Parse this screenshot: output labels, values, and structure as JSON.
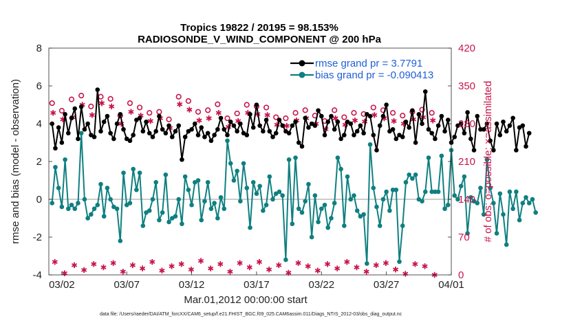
{
  "chart_data": {
    "type": "line",
    "title": "Tropics 19822 / 20195 = 98.153%",
    "subtitle": "RADIOSONDE_V_WIND_COMPONENT @ 200 hPa",
    "xlabel": "Mar.01,2012 00:00:00 start",
    "ylabel": "rmse and bias (model - observation)",
    "y2label": "# of obs: o=possible; ×=assimilated",
    "footer": "data file: /Users/raeder/DAI/ATM_forcXX/CAM6_setup/f.e21.FHIST_BGC.f09_025.CAM6assim.011/Diags_NTrS_2012-03/obs_diag_output.nc",
    "x_range": [
      0.5,
      31.5
    ],
    "ylim": [
      -4,
      8
    ],
    "y2lim": [
      0,
      420
    ],
    "yticks": [
      "-4",
      "-2",
      "0",
      "2",
      "4",
      "6",
      "8"
    ],
    "y2ticks": [
      "0",
      "70",
      "140",
      "210",
      "280",
      "350",
      "420"
    ],
    "xtick_labels": [
      "03/02",
      "03/07",
      "03/12",
      "03/17",
      "03/22",
      "03/27",
      "04/01"
    ],
    "xtick_pos": [
      1.5,
      6.5,
      11.5,
      16.5,
      21.5,
      26.5,
      31.5
    ],
    "legend": [
      "rmse grand pr = 3.7791",
      "bias grand pr = -0.090413"
    ],
    "legend_position": "top-right",
    "colors": {
      "rmse": "#000000",
      "bias": "#0f7f80",
      "obs": "#c8144b",
      "zero": "#bbbbbb"
    },
    "x_start": 0.75,
    "x_step": 0.25,
    "rmse": [
      4.0,
      2.7,
      3.8,
      3.0,
      4.5,
      3.5,
      4.3,
      4.8,
      3.2,
      4.9,
      3.7,
      4.0,
      3.4,
      3.3,
      5.8,
      3.6,
      4.1,
      4.4,
      3.5,
      3.2,
      4.0,
      4.5,
      3.7,
      3.2,
      3.1,
      3.4,
      4.2,
      4.3,
      3.6,
      4.1,
      3.5,
      3.3,
      3.6,
      4.4,
      3.7,
      3.5,
      3.9,
      3.3,
      3.6,
      3.9,
      2.1,
      3.3,
      3.6,
      3.7,
      4.0,
      3.4,
      3.8,
      3.3,
      3.5,
      3.1,
      3.4,
      3.7,
      4.3,
      3.7,
      3.4,
      4.1,
      3.9,
      3.6,
      4.0,
      3.5,
      3.4,
      4.5,
      3.8,
      5.0,
      3.9,
      3.6,
      4.2,
      3.6,
      3.3,
      3.5,
      4.2,
      3.9,
      3.6,
      3.5,
      3.9,
      4.1,
      3.0,
      2.8,
      4.3,
      3.8,
      4.0,
      3.9,
      4.7,
      4.4,
      3.4,
      4.1,
      4.4,
      3.7,
      4.1,
      3.2,
      3.4,
      4.1,
      4.0,
      3.4,
      3.6,
      3.9,
      3.5,
      4.5,
      4.4,
      3.4,
      2.6,
      3.9,
      4.4,
      5.0,
      3.6,
      3.7,
      3.2,
      3.4,
      3.3,
      4.1,
      3.8,
      4.7,
      3.0,
      4.5,
      4.0,
      5.7,
      3.7,
      3.5,
      3.2,
      3.9,
      4.4,
      3.6,
      4.2,
      3.0,
      3.3,
      3.9,
      4.0,
      3.5,
      4.6,
      3.2,
      2.6,
      4.4,
      3.7,
      3.7,
      4.0,
      3.1,
      2.6,
      4.0,
      3.4,
      4.1,
      3.6,
      3.9,
      4.3,
      2.6,
      3.8,
      3.9,
      2.8,
      3.5
    ],
    "bias": [
      -0.2,
      1.7,
      0.6,
      -0.4,
      2.1,
      -0.5,
      -0.3,
      -0.5,
      -0.2,
      3.5,
      0.0,
      -1.0,
      -0.8,
      -0.5,
      -0.3,
      0.8,
      -0.9,
      0.6,
      0.0,
      -0.4,
      -0.5,
      -2.2,
      1.4,
      -0.3,
      -0.2,
      1.6,
      0.5,
      1.4,
      -1.4,
      -0.7,
      -0.6,
      0.0,
      0.9,
      -1.1,
      -0.7,
      1.3,
      -1.2,
      -1.0,
      -0.9,
      0.0,
      -1.3,
      1.2,
      0.5,
      -0.3,
      0.9,
      1.0,
      -1.1,
      -0.1,
      0.9,
      -0.5,
      -0.2,
      -1.0,
      0.1,
      -0.5,
      3.1,
      1.9,
      1.0,
      1.5,
      -0.1,
      1.9,
      0.6,
      -1.5,
      0.9,
      0.3,
      0.7,
      -0.6,
      -0.3,
      1.2,
      0.0,
      0.3,
      0.4,
      0.2,
      -3.2,
      2.1,
      -1.3,
      2.2,
      -0.5,
      -0.7,
      -0.1,
      0.8,
      -2.0,
      0.2,
      -1.2,
      -0.5,
      -0.3,
      -1.5,
      -1.0,
      -0.2,
      2.2,
      1.6,
      -1.4,
      1.2,
      0.0,
      0.2,
      -0.6,
      -0.9,
      -0.8,
      -3.4,
      2.9,
      0.6,
      -0.4,
      -1.4,
      0.0,
      0.4,
      -0.6,
      0.5,
      0.5,
      -3.3,
      -1.4,
      0.9,
      1.3,
      1.1,
      1.3,
      0.0,
      -0.1,
      0.4,
      2.2,
      0.4,
      0.4,
      0.4,
      2.3,
      -0.5,
      -0.3,
      2.6,
      0.2,
      0.0,
      0.7,
      1.2,
      -1.8,
      0.1,
      -0.1,
      -0.2,
      0.6,
      -0.8,
      2.1,
      0.6,
      -0.2,
      -1.8,
      0.3,
      -0.8,
      -2.4,
      0.4,
      -0.5,
      0.4,
      -1.1,
      -0.2,
      0.1,
      -0.2,
      0.0,
      -0.7
    ],
    "obs_possible": [
      318,
      304,
      325,
      332,
      312,
      330,
      326,
      295,
      318,
      310,
      300,
      302,
      288,
      330,
      322,
      302,
      305,
      316,
      290,
      299,
      315,
      312,
      310,
      292,
      290,
      300,
      305,
      295,
      285,
      305,
      292,
      300,
      298,
      310,
      305,
      300,
      295,
      302,
      306,
      300
    ],
    "obs_assimilated": [
      300,
      288,
      292,
      315,
      296,
      318,
      312,
      280,
      302,
      295,
      285,
      290,
      272,
      316,
      306,
      286,
      290,
      300,
      274,
      285,
      300,
      298,
      296,
      278,
      276,
      286,
      290,
      280,
      270,
      290,
      278,
      286,
      284,
      296,
      290,
      285,
      280,
      288,
      292,
      286
    ],
    "obs_small": [
      24,
      3,
      18,
      9,
      20,
      14,
      22,
      6,
      18,
      12,
      24,
      8,
      16,
      20,
      10,
      26,
      12,
      20,
      6,
      22,
      14,
      24,
      10,
      18,
      4,
      22,
      16,
      8,
      20,
      12,
      24,
      14,
      6,
      18,
      22,
      10,
      2,
      20,
      16,
      0
    ]
  }
}
